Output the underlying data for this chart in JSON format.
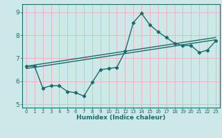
{
  "xlabel": "Humidex (Indice chaleur)",
  "ylabel": "",
  "xlim": [
    -0.5,
    23.5
  ],
  "ylim": [
    4.85,
    9.35
  ],
  "xticks": [
    0,
    1,
    2,
    3,
    4,
    5,
    6,
    7,
    8,
    9,
    10,
    11,
    12,
    13,
    14,
    15,
    16,
    17,
    18,
    19,
    20,
    21,
    22,
    23
  ],
  "yticks": [
    5,
    6,
    7,
    8,
    9
  ],
  "bg_color": "#cde8e8",
  "grid_color": "#e8b8b8",
  "line_color": "#1a6b6b",
  "marker": "D",
  "marker_size": 2.2,
  "line_width": 1.0,
  "curve1_x": [
    0,
    1,
    2,
    3,
    4,
    5,
    6,
    7,
    8,
    9,
    10,
    11,
    12,
    13,
    14,
    15,
    16,
    17,
    18,
    19,
    20,
    21,
    22,
    23
  ],
  "curve1_y": [
    6.65,
    6.65,
    5.7,
    5.8,
    5.8,
    5.55,
    5.5,
    5.35,
    5.95,
    6.5,
    6.55,
    6.6,
    7.3,
    8.55,
    8.95,
    8.45,
    8.15,
    7.9,
    7.65,
    7.55,
    7.55,
    7.25,
    7.35,
    7.75
  ],
  "curve2_x": [
    0,
    23
  ],
  "curve2_y": [
    6.65,
    7.9
  ],
  "curve3_x": [
    0,
    23
  ],
  "curve3_y": [
    6.55,
    7.8
  ],
  "xlabel_fontsize": 6.5,
  "tick_fontsize_x": 5.0,
  "tick_fontsize_y": 6.5
}
